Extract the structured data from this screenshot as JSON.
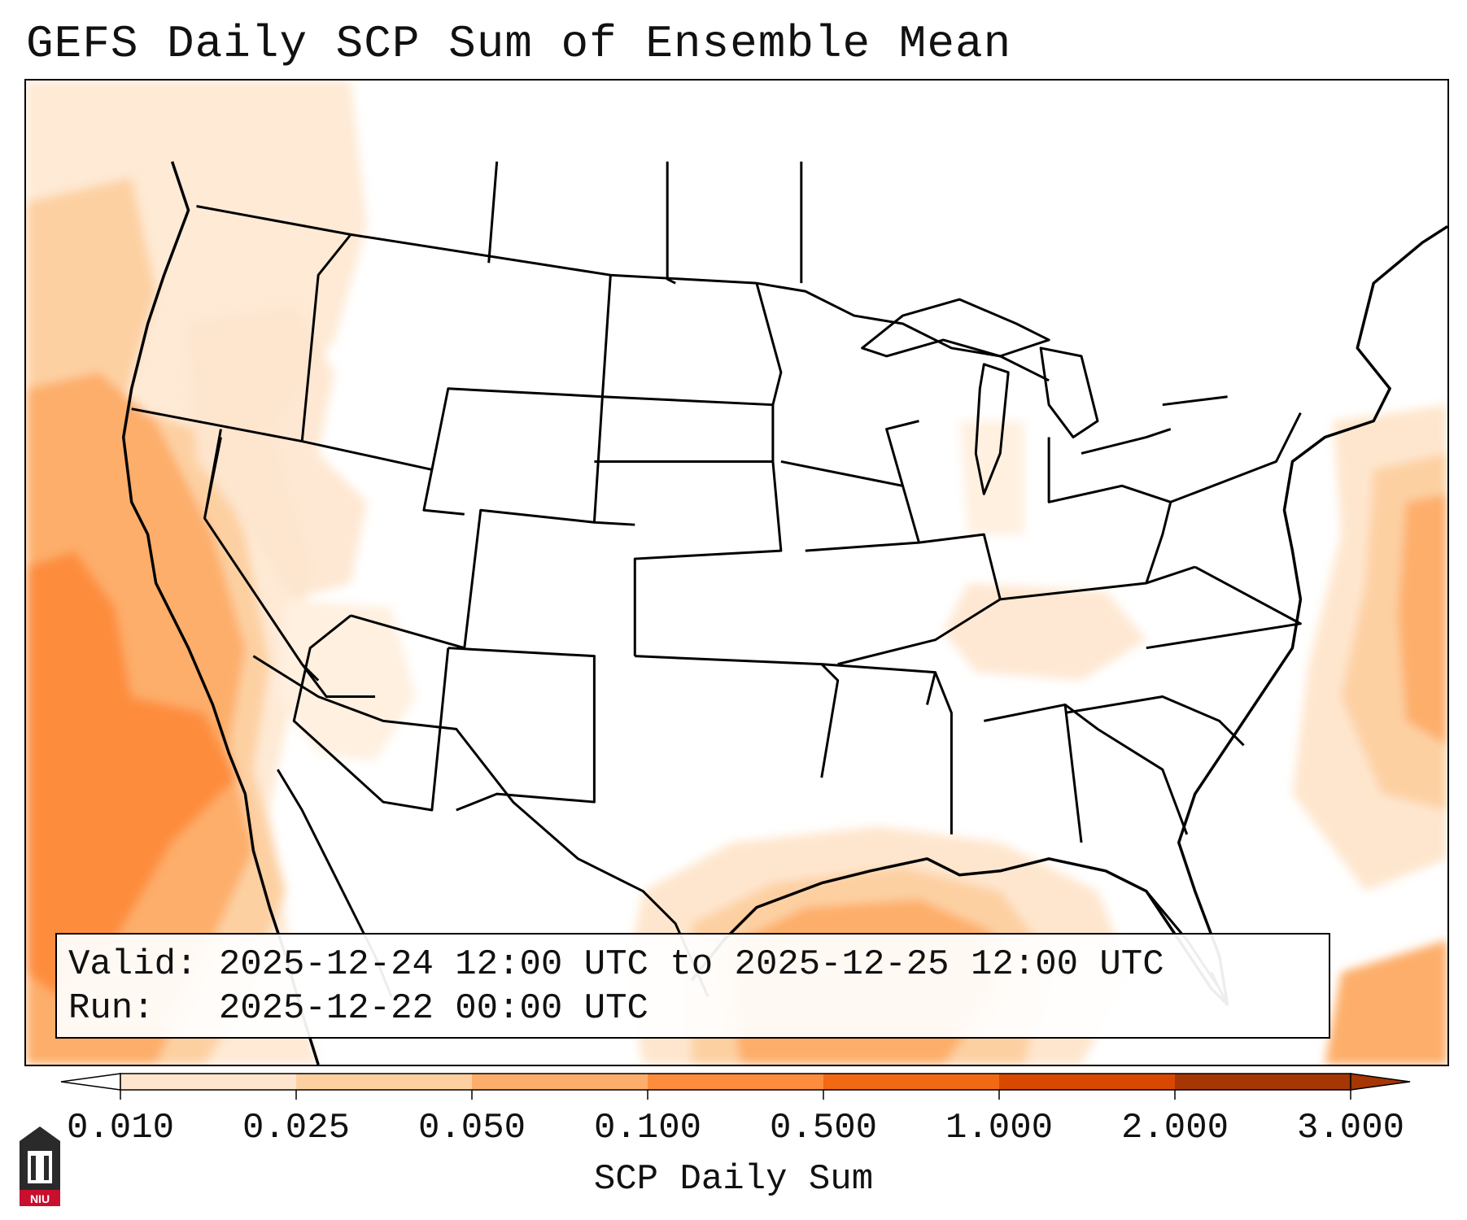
{
  "title": "GEFS Daily SCP Sum of Ensemble Mean",
  "valid_line": "Valid: 2025-12-24 12:00 UTC to 2025-12-25 12:00 UTC",
  "run_line": "Run:   2025-12-22 00:00 UTC",
  "colorbar": {
    "label": "SCP Daily Sum",
    "ticks": [
      "0.010",
      "0.025",
      "0.050",
      "0.100",
      "0.500",
      "1.000",
      "2.000",
      "3.000"
    ],
    "colors": [
      "#fff5eb",
      "#fee6ce",
      "#fdd0a2",
      "#fdae6b",
      "#fd8d3c",
      "#f16913",
      "#d94801",
      "#a63603"
    ],
    "extend": "both"
  },
  "logo_text": "NIU",
  "colors": {
    "background": "#ffffff",
    "border": "#000000",
    "shade_light": "#fee6ce",
    "shade_mid": "#fdd0a2",
    "shade_strong": "#fdae6b",
    "shade_max": "#fd8d3c"
  },
  "map": {
    "region": "contiguous-united-states",
    "fill_regions": [
      {
        "name": "pacific-coast-plume",
        "level": "0.100-0.500"
      },
      {
        "name": "gulf-of-mexico-plume",
        "level": "0.100"
      },
      {
        "name": "western-atlantic-plume",
        "level": "0.100"
      },
      {
        "name": "caribbean-plume",
        "level": "0.100"
      },
      {
        "name": "great-basin-patches",
        "level": "0.010-0.050"
      },
      {
        "name": "tennessee-valley-patch",
        "level": "0.010-0.025"
      }
    ]
  }
}
